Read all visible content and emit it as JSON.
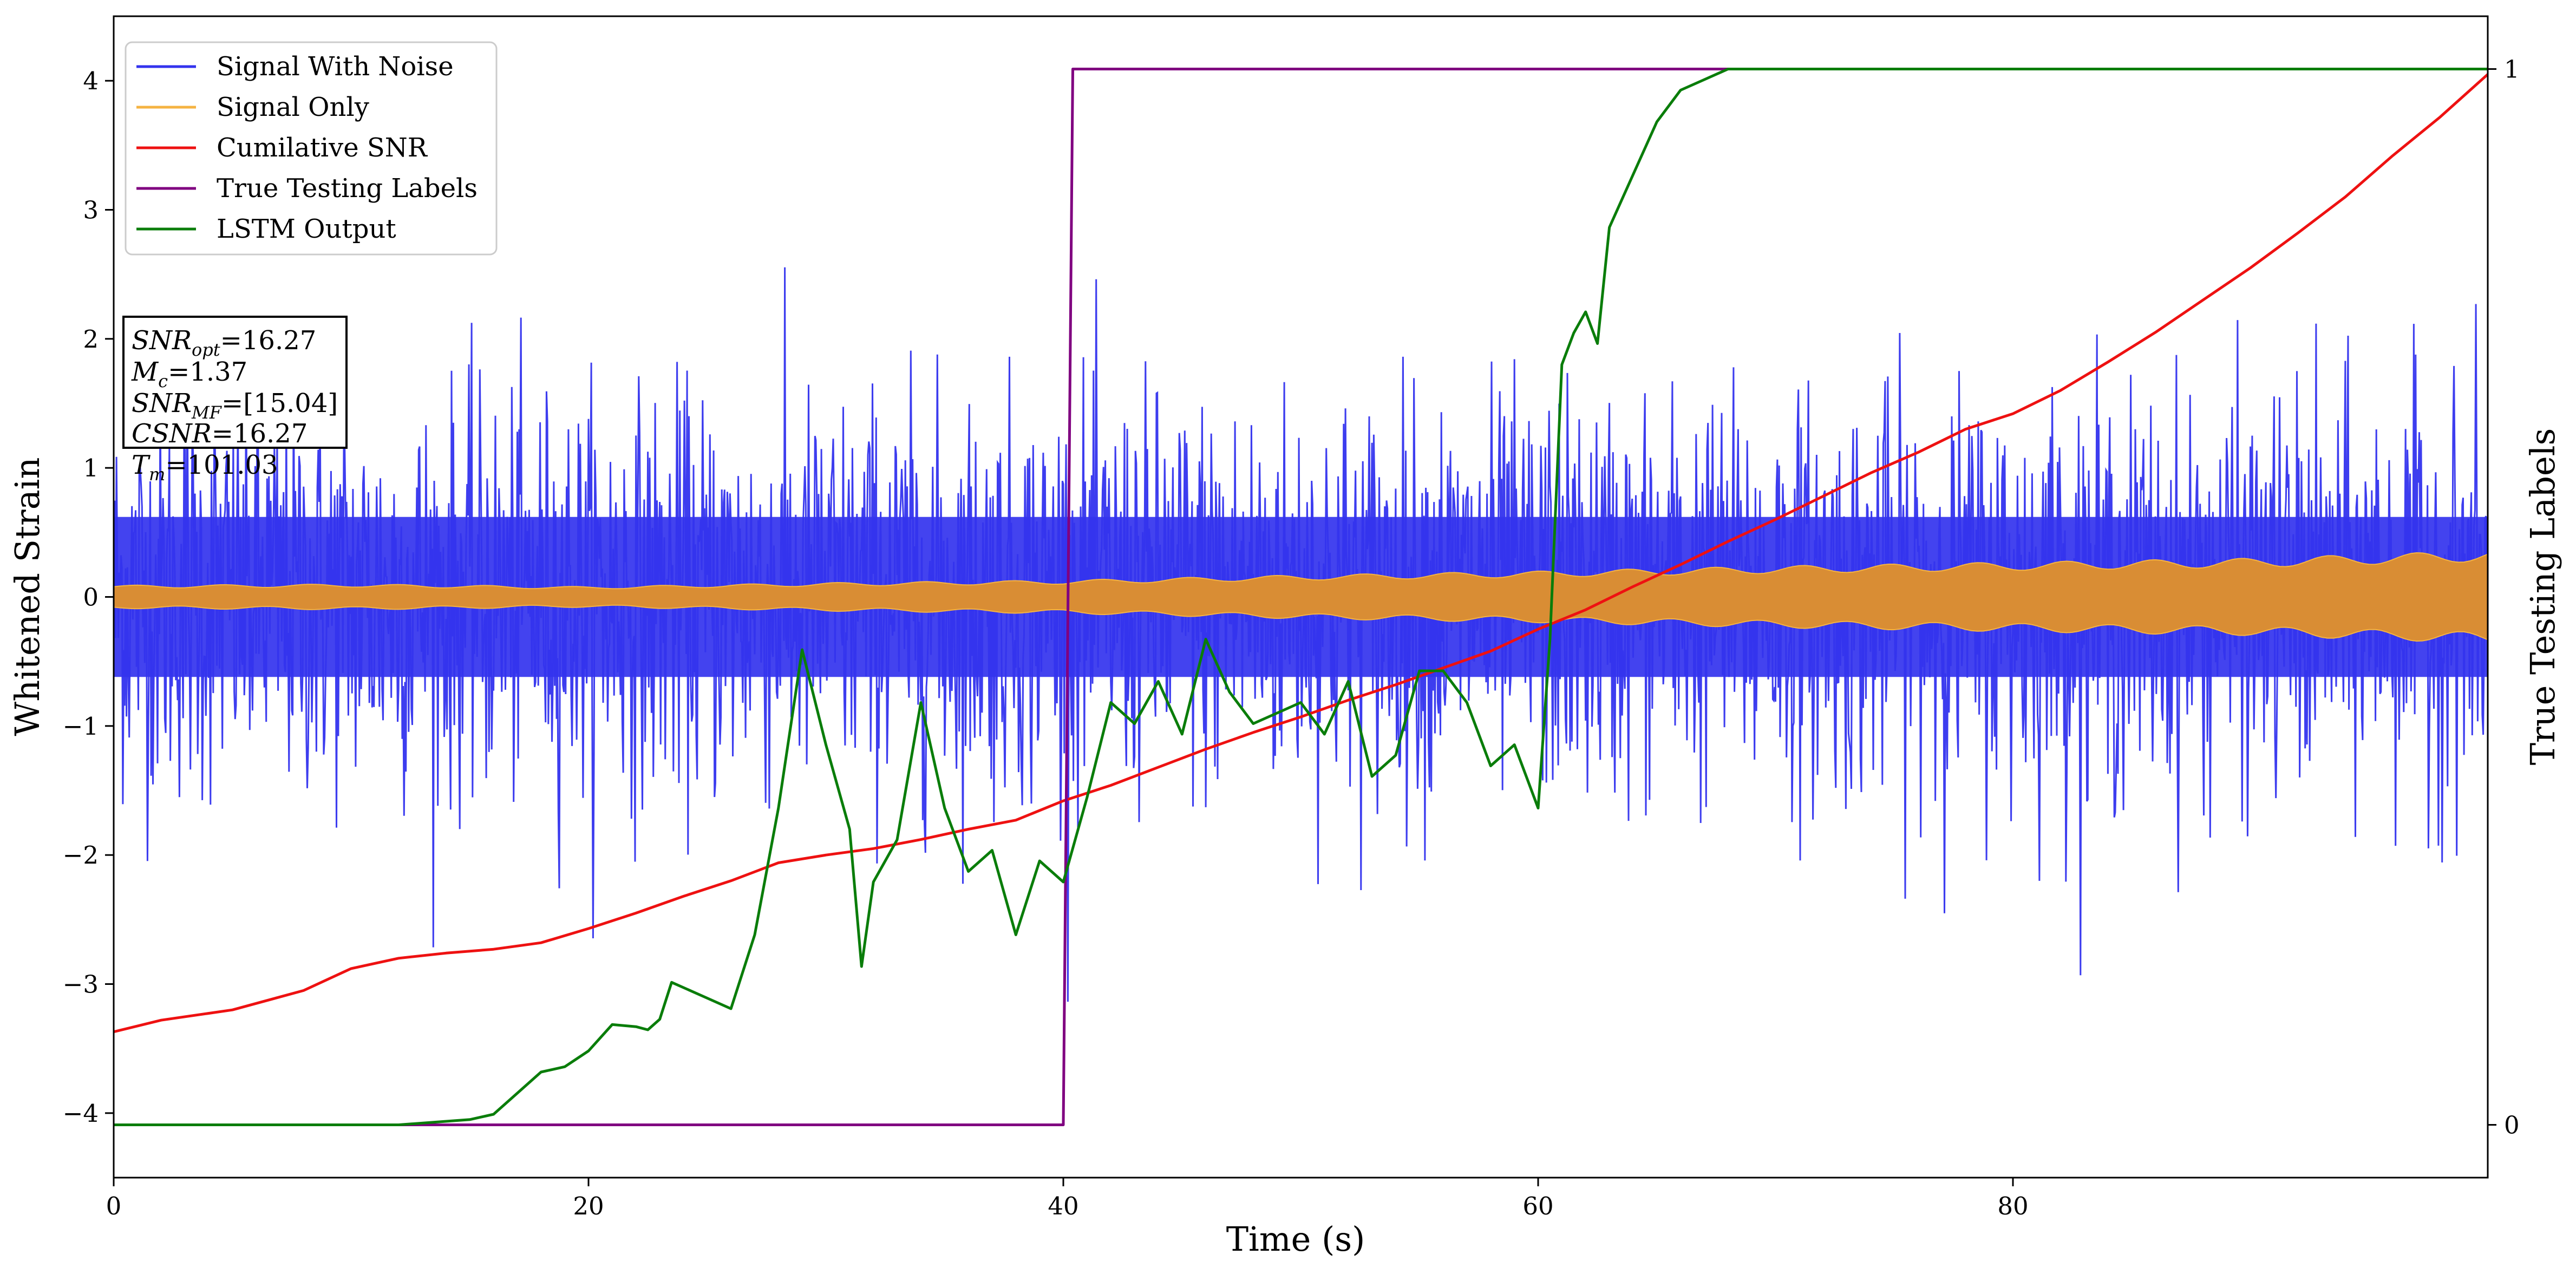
{
  "chart_data": {
    "type": "line",
    "xlabel": "Time (s)",
    "ylabel": "Whitened Strain",
    "y2label": "True Testing Labels",
    "xlim": [
      0,
      100
    ],
    "ylim": [
      -4.5,
      4.5
    ],
    "y2lim": [
      -0.05,
      1.05
    ],
    "xticks": [
      0,
      20,
      40,
      60,
      80
    ],
    "yticks": [
      -4,
      -3,
      -2,
      -1,
      0,
      1,
      2,
      3,
      4
    ],
    "y2ticks": [
      0,
      1
    ],
    "grid": false,
    "legend_position": "top-left",
    "annotation": {
      "snr_opt": "=16.27",
      "mc": "=1.37",
      "snr_mf": "=[15.04]",
      "csnr": "=16.27",
      "tm": "=101.03"
    },
    "series": [
      {
        "name": "Signal With Noise",
        "color": "#3333ee",
        "axis": "left",
        "description_points": [
          [
            0,
            0
          ],
          [
            100,
            0
          ]
        ]
      },
      {
        "name": "Signal Only",
        "color": "#f5b342",
        "axis": "left",
        "envelope": [
          [
            0,
            0.09
          ],
          [
            10,
            0.1
          ],
          [
            20,
            0.08
          ],
          [
            30,
            0.11
          ],
          [
            40,
            0.13
          ],
          [
            50,
            0.17
          ],
          [
            60,
            0.2
          ],
          [
            70,
            0.24
          ],
          [
            80,
            0.27
          ],
          [
            90,
            0.3
          ],
          [
            100,
            0.36
          ]
        ]
      },
      {
        "name": "Cumilative SNR",
        "color": "#ee1111",
        "axis": "left",
        "x": [
          0,
          2,
          5,
          8,
          10,
          12,
          14,
          16,
          18,
          20,
          22,
          24,
          26,
          28,
          30,
          32,
          34,
          36,
          38,
          40,
          42,
          44,
          46,
          48,
          50,
          52,
          54,
          56,
          58,
          60,
          62,
          64,
          66,
          68,
          70,
          72,
          74,
          76,
          78,
          80,
          82,
          84,
          86,
          88,
          90,
          92,
          94,
          96,
          98,
          100
        ],
        "y": [
          -3.37,
          -3.28,
          -3.2,
          -3.05,
          -2.88,
          -2.8,
          -2.76,
          -2.73,
          -2.68,
          -2.57,
          -2.45,
          -2.32,
          -2.2,
          -2.06,
          -2.0,
          -1.95,
          -1.88,
          -1.8,
          -1.73,
          -1.58,
          -1.46,
          -1.32,
          -1.18,
          -1.05,
          -0.93,
          -0.8,
          -0.68,
          -0.55,
          -0.42,
          -0.25,
          -0.1,
          0.08,
          0.25,
          0.43,
          0.6,
          0.78,
          0.96,
          1.12,
          1.3,
          1.42,
          1.6,
          1.82,
          2.05,
          2.3,
          2.55,
          2.82,
          3.1,
          3.42,
          3.72,
          4.05
        ]
      },
      {
        "name": "True Testing Labels",
        "color": "#800080",
        "axis": "right",
        "x": [
          0,
          40,
          40.4,
          100
        ],
        "y": [
          0,
          0,
          1,
          1
        ]
      },
      {
        "name": "LSTM Output",
        "color": "#0a7d0a",
        "axis": "right",
        "x": [
          0,
          12,
          15,
          16,
          17,
          18,
          19,
          20,
          21,
          22,
          22.5,
          23,
          23.5,
          24,
          25,
          26,
          27,
          28,
          29,
          30,
          31,
          31.5,
          32,
          32.5,
          33,
          34,
          35,
          36,
          37,
          38,
          39,
          40,
          41,
          42,
          43,
          44,
          45,
          46,
          47,
          48,
          49,
          50,
          51,
          52,
          53,
          54,
          55,
          56,
          57,
          58,
          59,
          60,
          60.5,
          61,
          61.5,
          62,
          62.5,
          63,
          64,
          65,
          66,
          67,
          68,
          69,
          70,
          100
        ],
        "y": [
          0,
          0,
          0.005,
          0.01,
          0.03,
          0.05,
          0.055,
          0.07,
          0.095,
          0.093,
          0.09,
          0.1,
          0.135,
          0.13,
          0.12,
          0.11,
          0.18,
          0.3,
          0.45,
          0.36,
          0.28,
          0.15,
          0.23,
          0.25,
          0.27,
          0.4,
          0.3,
          0.24,
          0.26,
          0.18,
          0.25,
          0.23,
          0.31,
          0.4,
          0.38,
          0.42,
          0.37,
          0.46,
          0.41,
          0.38,
          0.39,
          0.4,
          0.37,
          0.42,
          0.33,
          0.35,
          0.43,
          0.43,
          0.4,
          0.34,
          0.36,
          0.3,
          0.46,
          0.72,
          0.75,
          0.77,
          0.74,
          0.85,
          0.9,
          0.95,
          0.98,
          0.99,
          1.0,
          1.0,
          1.0,
          1.0
        ]
      }
    ]
  }
}
